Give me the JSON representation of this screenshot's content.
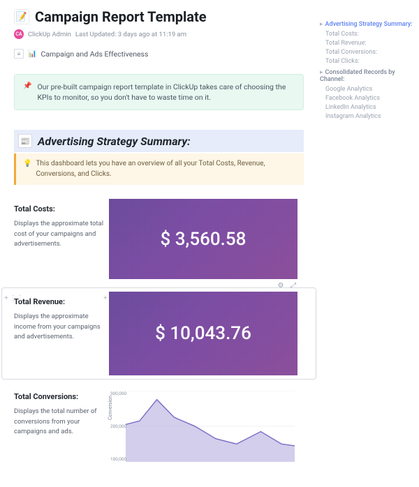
{
  "page": {
    "title": "Campaign Report Template",
    "title_icon": "📝",
    "author_initials": "CA",
    "author_name": "ClickUp Admin",
    "last_updated": "Last Updated: 3 days ago at 11:19 am",
    "avatar_bg": "#e84a9c"
  },
  "toc_inline": {
    "link_icon_box": "≡",
    "bar_icon": "📊",
    "label": "Campaign and Ads Effectiveness"
  },
  "callout_intro": {
    "icon": "📌",
    "text": "Our pre-built campaign report template in ClickUp takes care of choosing the KPIs to monitor, so you don't have to waste time on it."
  },
  "section1": {
    "icon": "📰",
    "title": "Advertising Strategy Summary:",
    "subtext_icon": "💡",
    "subtext": "This dashboard lets you have an overview of all your Total Costs, Revenue, Conversions, and Clicks.",
    "header_bg": "#e6ecfa",
    "callout_bg": "#fef6e6",
    "callout_border": "#f2a93b"
  },
  "metrics": {
    "cost": {
      "title": "Total Costs:",
      "desc": "Displays the approximate total cost of your campaigns and advertisements.",
      "value": "$ 3,560.58",
      "card_gradient_from": "#6a4a9c",
      "card_gradient_to": "#8a4d9a",
      "text_color": "#ffffff"
    },
    "revenue": {
      "title": "Total Revenue:",
      "desc": "Displays the approximate income from your campaigns and advertisements.",
      "value": "$ 10,043.76",
      "card_gradient_from": "#6a4a9c",
      "card_gradient_to": "#8a4d9a",
      "text_color": "#ffffff"
    },
    "conversions": {
      "title": "Total Conversions:",
      "desc": "Displays the total number of conversions from your campaigns and ads."
    }
  },
  "chart": {
    "type": "area",
    "ylabel": "Conversion",
    "ylim": [
      100000,
      300000
    ],
    "yticks": [
      "300,000",
      "200,000",
      "100,000"
    ],
    "x_points": [
      0,
      20,
      45,
      70,
      100,
      130,
      160,
      195,
      225,
      244
    ],
    "y_values": [
      205000,
      215000,
      275000,
      225000,
      200000,
      165000,
      150000,
      185000,
      150000,
      145000
    ],
    "fill_color": "#c3bde4",
    "fill_opacity": 0.75,
    "stroke_color": "#7a6cc4",
    "stroke_width": 1.4,
    "grid_color": "#e9ebef",
    "background": "#ffffff",
    "label_fontsize": 7,
    "tick_fontsize": 6.5,
    "tick_color": "#8b929e"
  },
  "sidebar_toc": {
    "head1": "Advertising Strategy Summary:",
    "items1": [
      "Total Costs:",
      "Total Revenue:",
      "Total Conversions:",
      "Total Clicks:"
    ],
    "head2": "Consolidated Records by Channel:",
    "items2": [
      "Google Analytics",
      "Facebook Analytics",
      "LinkedIn Analytics",
      "Instagram Analytics"
    ]
  },
  "ui_handles": {
    "plus": "+",
    "drag": "⋮⋮",
    "settings": "⚙",
    "expand": "⤢"
  },
  "colors": {
    "text_primary": "#1a1f25",
    "text_secondary": "#87909e",
    "callout_green_bg": "#e9f8f1",
    "callout_green_border": "#d4efe2",
    "toc_active": "#5e81f4"
  }
}
